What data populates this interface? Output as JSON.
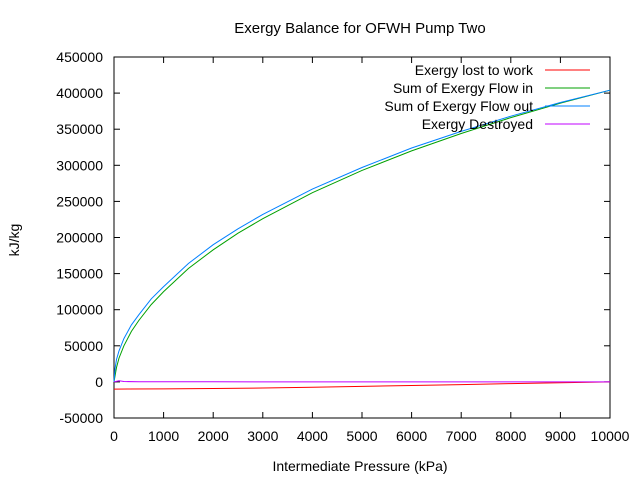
{
  "chart_data": {
    "type": "line",
    "title": "Exergy Balance for OFWH Pump Two",
    "xlabel": "Intermediate Pressure (kPa)",
    "ylabel": "kJ/kg",
    "xlim": [
      0,
      10000
    ],
    "ylim": [
      -50000,
      450000
    ],
    "xticks": [
      0,
      1000,
      2000,
      3000,
      4000,
      5000,
      6000,
      7000,
      8000,
      9000,
      10000
    ],
    "yticks": [
      -50000,
      0,
      50000,
      100000,
      150000,
      200000,
      250000,
      300000,
      350000,
      400000,
      450000
    ],
    "grid": false,
    "legend_position": "top-right",
    "series": [
      {
        "name": "Exergy lost to work",
        "color": "#ff0000",
        "x": [
          0,
          1000,
          2000,
          3000,
          4000,
          5000,
          6000,
          7000,
          8000,
          9000,
          10000
        ],
        "y": [
          -10000,
          -9700,
          -9200,
          -8500,
          -7500,
          -6300,
          -5000,
          -3700,
          -2400,
          -1100,
          0
        ]
      },
      {
        "name": "Sum of Exergy Flow in",
        "color": "#00a000",
        "x": [
          0,
          20,
          50,
          100,
          200,
          350,
          500,
          750,
          1000,
          1500,
          2000,
          2500,
          3000,
          4000,
          5000,
          6000,
          7000,
          8000,
          9000,
          10000
        ],
        "y": [
          0,
          8000,
          20000,
          33000,
          50000,
          70000,
          85000,
          107000,
          125000,
          157000,
          183000,
          206000,
          226000,
          262000,
          293000,
          320000,
          344000,
          366000,
          386000,
          404000
        ]
      },
      {
        "name": "Sum of Exergy Flow out",
        "color": "#0080ff",
        "x": [
          0,
          20,
          50,
          100,
          200,
          350,
          500,
          750,
          1000,
          1500,
          2000,
          2500,
          3000,
          4000,
          5000,
          6000,
          7000,
          8000,
          9000,
          10000
        ],
        "y": [
          0,
          18000,
          31000,
          43000,
          60000,
          79000,
          93000,
          115000,
          132000,
          164000,
          190000,
          212000,
          232000,
          267000,
          297000,
          324000,
          347000,
          368000,
          387000,
          404000
        ]
      },
      {
        "name": "Exergy Destroyed",
        "color": "#c000ff",
        "x": [
          0,
          100,
          200,
          500,
          1000,
          2000,
          5000,
          10000
        ],
        "y": [
          0,
          1500,
          500,
          200,
          150,
          100,
          50,
          0
        ]
      }
    ]
  }
}
